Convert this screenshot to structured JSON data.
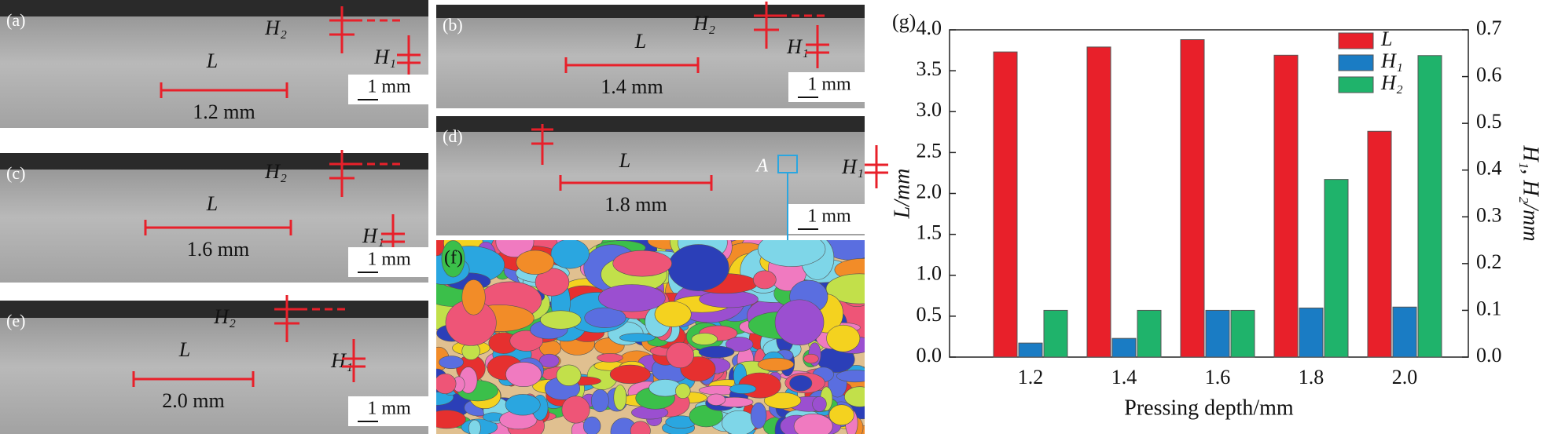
{
  "panels": [
    {
      "label": "(a)",
      "L": "L",
      "H2": "H₂",
      "H1": "H₁",
      "dimension": "1.2 mm",
      "scale_bar": "1 mm"
    },
    {
      "label": "(b)",
      "L": "L",
      "H2": "H₂",
      "H1": "H₁",
      "dimension": "1.4 mm",
      "scale_bar": "1 mm"
    },
    {
      "label": "(c)",
      "L": "L",
      "H2": "H₂",
      "H1": "H₁",
      "dimension": "1.6 mm",
      "scale_bar": "1 mm"
    },
    {
      "label": "(d)",
      "L": "L",
      "A": "A",
      "H1": "H₁",
      "dimension": "1.8 mm",
      "scale_bar": "1 mm"
    },
    {
      "label": "(e)",
      "L": "L",
      "H2": "H₂",
      "H1": "H₁",
      "dimension": "2.0 mm",
      "scale_bar": "1 mm"
    },
    {
      "label": "(f)"
    }
  ],
  "chart_data": {
    "type": "bar",
    "label": "(g)",
    "x_label": "Pressing depth/mm",
    "y_label": "L/mm",
    "y2_label": "H₁, H₂/mm",
    "categories": [
      "1.2",
      "1.4",
      "1.6",
      "1.8",
      "2.0"
    ],
    "series": [
      {
        "name": "L",
        "color": "#e8202a",
        "values": [
          3.73,
          3.79,
          3.88,
          3.69,
          2.76
        ]
      },
      {
        "name": "H₁",
        "color": "#1a7cc4",
        "axis": "y2",
        "values": [
          0.03,
          0.04,
          0.1,
          0.105,
          0.107
        ]
      },
      {
        "name": "H₂",
        "color": "#1fb36b",
        "axis": "y2",
        "values": [
          0.1,
          0.1,
          0.1,
          0.38,
          0.645
        ]
      }
    ],
    "ylim": [
      0,
      4
    ],
    "yticks": [
      {
        "value": 0,
        "label": "0.0"
      },
      0.5,
      {
        "value": 1,
        "label": "1.0"
      },
      1.5,
      {
        "value": 2,
        "label": "2.0"
      },
      2.5,
      {
        "value": 3,
        "label": "3.0"
      },
      3.5,
      {
        "value": 4,
        "label": "4.0"
      }
    ],
    "y2lim": [
      0,
      0.7
    ],
    "y2ticks": [
      {
        "value": 0,
        "label": "0.0"
      },
      0.1,
      0.2,
      0.3,
      0.4,
      0.5,
      0.6,
      0.7
    ],
    "grid": false,
    "legend": "upper right"
  }
}
